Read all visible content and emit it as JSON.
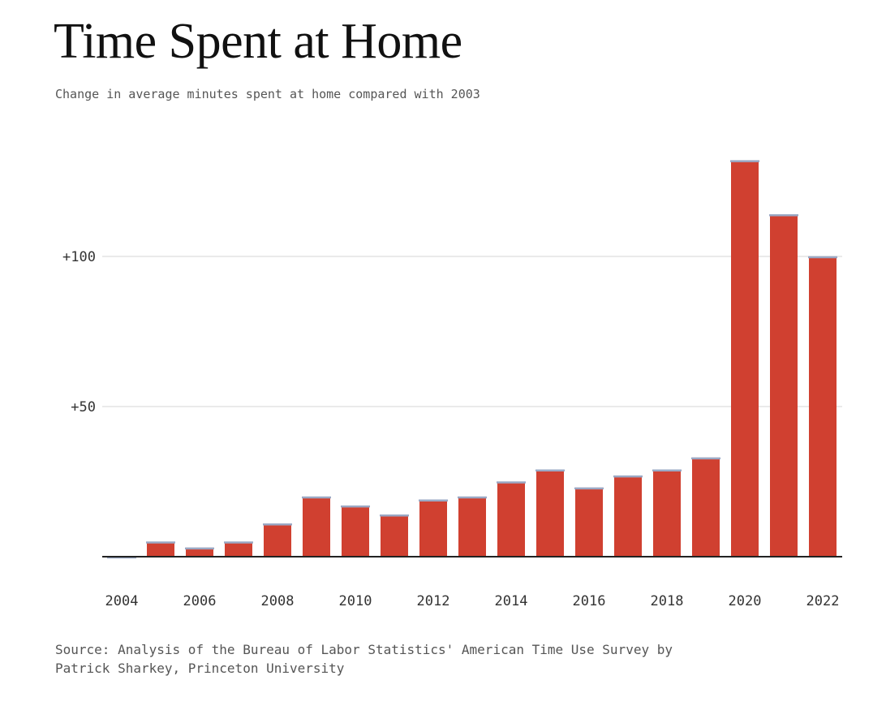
{
  "header": {
    "title": "Time Spent at Home",
    "subtitle": "Change in average minutes spent at home compared with 2003"
  },
  "footer": {
    "source_line1": "Source: Analysis of the Bureau of Labor Statistics' American Time Use Survey by",
    "source_line2": "Patrick Sharkey, Princeton University"
  },
  "colors": {
    "bar": "#d04030",
    "bar_cap": "#9aa8c4",
    "gridline": "#e4e4e4",
    "axis": "#222222"
  },
  "chart_data": {
    "type": "bar",
    "title": "Time Spent at Home",
    "subtitle": "Change in average minutes spent at home compared with 2003",
    "xlabel": "",
    "ylabel": "",
    "categories": [
      "2004",
      "2005",
      "2006",
      "2007",
      "2008",
      "2009",
      "2010",
      "2011",
      "2012",
      "2013",
      "2014",
      "2015",
      "2016",
      "2017",
      "2018",
      "2019",
      "2020",
      "2021",
      "2022"
    ],
    "values": [
      0,
      5,
      3,
      5,
      11,
      20,
      17,
      14,
      19,
      20,
      25,
      29,
      23,
      27,
      29,
      33,
      132,
      114,
      100
    ],
    "ylim": [
      0,
      135
    ],
    "y_ticks": [
      {
        "value": 50,
        "label": "+50"
      },
      {
        "value": 100,
        "label": "+100"
      }
    ],
    "x_tick_labels": [
      "2004",
      "2006",
      "2008",
      "2010",
      "2012",
      "2014",
      "2016",
      "2018",
      "2020",
      "2022"
    ],
    "grid": true,
    "legend": "none"
  }
}
